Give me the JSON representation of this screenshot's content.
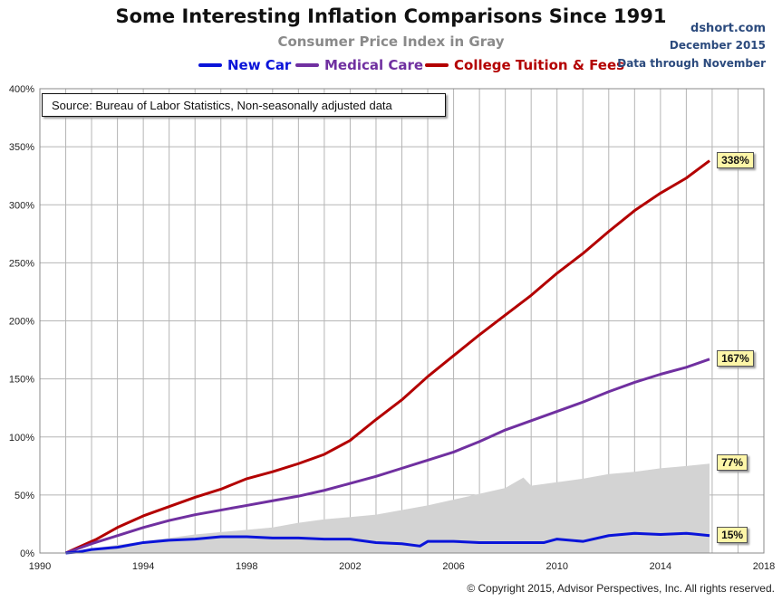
{
  "header": {
    "title": "Some Interesting Inflation Comparisons Since 1991",
    "subtitle": "Consumer Price Index in Gray",
    "brand_site": "dshort.com",
    "brand_date": "December 2015",
    "brand_note": "Data through November"
  },
  "source_note": "Source: Bureau of Labor Statistics, Non-seasonally adjusted data",
  "copyright": "© Copyright 2015, Advisor Perspectives, Inc. All rights reserved.",
  "colors": {
    "new_car": "#0a14d9",
    "medical_care": "#7030a0",
    "college_tuition": "#b30000",
    "cpi_area": "#d3d3d3",
    "grid": "#b5b5b5",
    "end_label_bg": "#fdf6a8"
  },
  "chart_data": {
    "type": "line",
    "title": "Some Interesting Inflation Comparisons Since 1991",
    "subtitle": "Consumer Price Index in Gray",
    "xlabel": "",
    "ylabel": "",
    "xlim": [
      1990,
      2018
    ],
    "ylim": [
      0,
      400
    ],
    "x_ticks": [
      "1990",
      "1994",
      "1998",
      "2002",
      "2006",
      "2010",
      "2014",
      "2018"
    ],
    "y_ticks": [
      "0%",
      "50%",
      "100%",
      "150%",
      "200%",
      "250%",
      "300%",
      "350%",
      "400%"
    ],
    "grid": true,
    "legend_position": "top",
    "series": [
      {
        "name": "New Car",
        "color": "#0a14d9",
        "x": [
          1991.0,
          1991.5,
          1992.0,
          1993.0,
          1994.0,
          1995.0,
          1996.0,
          1997.0,
          1998.0,
          1999.0,
          2000.0,
          2001.0,
          2002.0,
          2003.0,
          2004.0,
          2004.7,
          2005.0,
          2006.0,
          2007.0,
          2008.0,
          2009.0,
          2009.5,
          2010.0,
          2011.0,
          2012.0,
          2013.0,
          2014.0,
          2015.0,
          2015.9
        ],
        "y": [
          0,
          1,
          3,
          5,
          9,
          11,
          12,
          14,
          14,
          13,
          13,
          12,
          12,
          9,
          8,
          6,
          10,
          10,
          9,
          9,
          9,
          9,
          12,
          10,
          15,
          17,
          16,
          17,
          15
        ]
      },
      {
        "name": "Medical Care",
        "color": "#7030a0",
        "x": [
          1991.0,
          1992.0,
          1993.0,
          1994.0,
          1995.0,
          1996.0,
          1997.0,
          1998.0,
          1999.0,
          2000.0,
          2001.0,
          2002.0,
          2003.0,
          2004.0,
          2005.0,
          2006.0,
          2007.0,
          2008.0,
          2009.0,
          2010.0,
          2011.0,
          2012.0,
          2013.0,
          2014.0,
          2015.0,
          2015.9
        ],
        "y": [
          0,
          8,
          15,
          22,
          28,
          33,
          37,
          41,
          45,
          49,
          54,
          60,
          66,
          73,
          80,
          87,
          96,
          106,
          114,
          122,
          130,
          139,
          147,
          154,
          160,
          167
        ]
      },
      {
        "name": "College Tuition & Fees",
        "color": "#b30000",
        "x": [
          1991.0,
          1991.6,
          1992.2,
          1993.0,
          1994.0,
          1995.0,
          1996.0,
          1997.0,
          1998.0,
          1999.0,
          2000.0,
          2001.0,
          2002.0,
          2003.0,
          2004.0,
          2005.0,
          2006.0,
          2007.0,
          2008.0,
          2009.0,
          2010.0,
          2011.0,
          2012.0,
          2013.0,
          2014.0,
          2015.0,
          2015.9
        ],
        "y": [
          0,
          6,
          12,
          22,
          32,
          40,
          48,
          55,
          64,
          70,
          77,
          85,
          97,
          115,
          132,
          152,
          170,
          188,
          205,
          222,
          241,
          258,
          277,
          295,
          310,
          323,
          338
        ]
      },
      {
        "name": "CPI",
        "color": "#d3d3d3",
        "x": [
          1991.0,
          1992.0,
          1993.0,
          1994.0,
          1995.0,
          1996.0,
          1997.0,
          1998.0,
          1999.0,
          2000.0,
          2001.0,
          2002.0,
          2003.0,
          2004.0,
          2005.0,
          2006.0,
          2007.0,
          2008.0,
          2008.7,
          2009.0,
          2010.0,
          2011.0,
          2012.0,
          2013.0,
          2014.0,
          2015.0,
          2015.9
        ],
        "y": [
          0,
          4,
          7,
          10,
          13,
          16,
          18,
          20,
          22,
          26,
          29,
          31,
          33,
          37,
          41,
          46,
          51,
          56,
          65,
          58,
          61,
          64,
          68,
          70,
          73,
          75,
          77
        ]
      }
    ],
    "end_labels": [
      {
        "series": "College Tuition & Fees",
        "text": "338%",
        "value": 338
      },
      {
        "series": "Medical Care",
        "text": "167%",
        "value": 167
      },
      {
        "series": "CPI",
        "text": "77%",
        "value": 77
      },
      {
        "series": "New Car",
        "text": "15%",
        "value": 15
      }
    ]
  }
}
